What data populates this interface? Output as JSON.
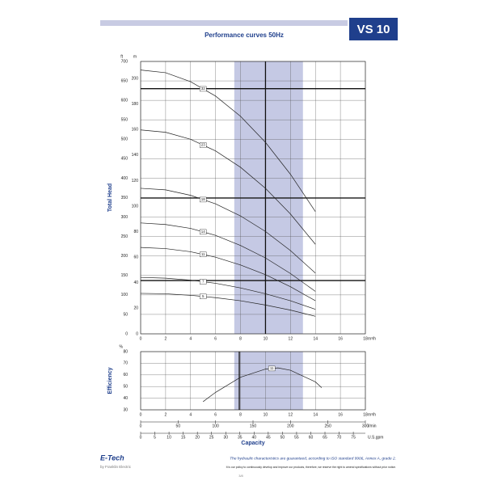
{
  "header": {
    "title": "Performance curves 50Hz",
    "model": "VS 10"
  },
  "chart_data": [
    {
      "type": "line",
      "ylabel": "Total Head",
      "y_unit": "ft",
      "y2_unit": "m",
      "x_unit": "m³/h",
      "x": [
        0,
        2,
        4,
        6,
        8,
        10,
        12,
        14
      ],
      "xlim": [
        0,
        18
      ],
      "xticks": [
        0,
        2,
        4,
        6,
        8,
        10,
        12,
        14,
        16,
        18
      ],
      "ylim": [
        0,
        700
      ],
      "yticks": [
        0,
        50,
        100,
        150,
        200,
        250,
        300,
        350,
        400,
        450,
        500,
        550,
        600,
        650,
        700
      ],
      "y2lim": [
        0,
        213.4
      ],
      "y2ticks": [
        0,
        20,
        40,
        60,
        80,
        100,
        120,
        140,
        160,
        180,
        200
      ],
      "grid": true,
      "band": [
        7.5,
        13
      ],
      "band_color": "#c5c9e4",
      "hlines": [
        630,
        349,
        137
      ],
      "vlines": [
        10
      ],
      "series": [
        {
          "name": "32",
          "color": "#222222",
          "values": [
            678,
            671,
            648,
            611,
            559,
            492,
            410,
            314
          ]
        },
        {
          "name": "23",
          "color": "#222222",
          "values": [
            524,
            518,
            500,
            470,
            428,
            374,
            308,
            230
          ]
        },
        {
          "name": "18",
          "color": "#222222",
          "values": [
            374,
            370,
            356,
            334,
            303,
            263,
            214,
            156
          ]
        },
        {
          "name": "14",
          "color": "#222222",
          "values": [
            285,
            281,
            271,
            253,
            227,
            195,
            155,
            109
          ]
        },
        {
          "name": "11",
          "color": "#222222",
          "values": [
            222,
            219,
            211,
            197,
            177,
            152,
            121,
            85
          ]
        },
        {
          "name": "7",
          "color": "#222222",
          "values": [
            145,
            143,
            138,
            130,
            118,
            103,
            85,
            63
          ]
        },
        {
          "name": "5",
          "color": "#222222",
          "values": [
            104,
            103,
            99,
            93,
            85,
            74,
            61,
            45
          ]
        }
      ]
    },
    {
      "type": "line",
      "ylabel": "Efficiency",
      "y_unit": "%",
      "x_unit": "m³/h",
      "xlabel": "Capacity",
      "x": [
        5,
        6,
        8,
        10,
        11,
        12,
        14,
        14.5
      ],
      "xlim": [
        0,
        18
      ],
      "xticks": [
        0,
        2,
        4,
        6,
        8,
        10,
        12,
        14,
        16,
        18
      ],
      "ylim": [
        30,
        80
      ],
      "yticks": [
        30,
        40,
        50,
        60,
        70,
        80
      ],
      "x2_unit": "l/min",
      "x2lim": [
        0,
        300
      ],
      "x2ticks": [
        0,
        50,
        100,
        150,
        200,
        250,
        300
      ],
      "x3_unit": "U.S.gpm",
      "x3lim": [
        0,
        79.25
      ],
      "x3ticks": [
        0,
        5,
        10,
        15,
        20,
        25,
        30,
        35,
        40,
        45,
        50,
        55,
        60,
        65,
        70,
        75
      ],
      "grid": true,
      "band": [
        7.5,
        13
      ],
      "band_color": "#c5c9e4",
      "vlines": [
        7.9
      ],
      "series": [
        {
          "name": "11",
          "color": "#222222",
          "values": [
            37,
            45,
            58,
            65,
            66,
            64,
            54,
            49
          ]
        }
      ]
    }
  ],
  "footer": {
    "brand": "E-Tech",
    "byline": "by Franklin Electric",
    "note": "The hydraulic characteristics are guaranteed, according to ISO standard 9906, Annex A, grade 2.",
    "policy": "It is our policy to continuously develop and improve our products, therefore, we reserve the right to amend specifications without prior notice.",
    "page": "3/8"
  }
}
